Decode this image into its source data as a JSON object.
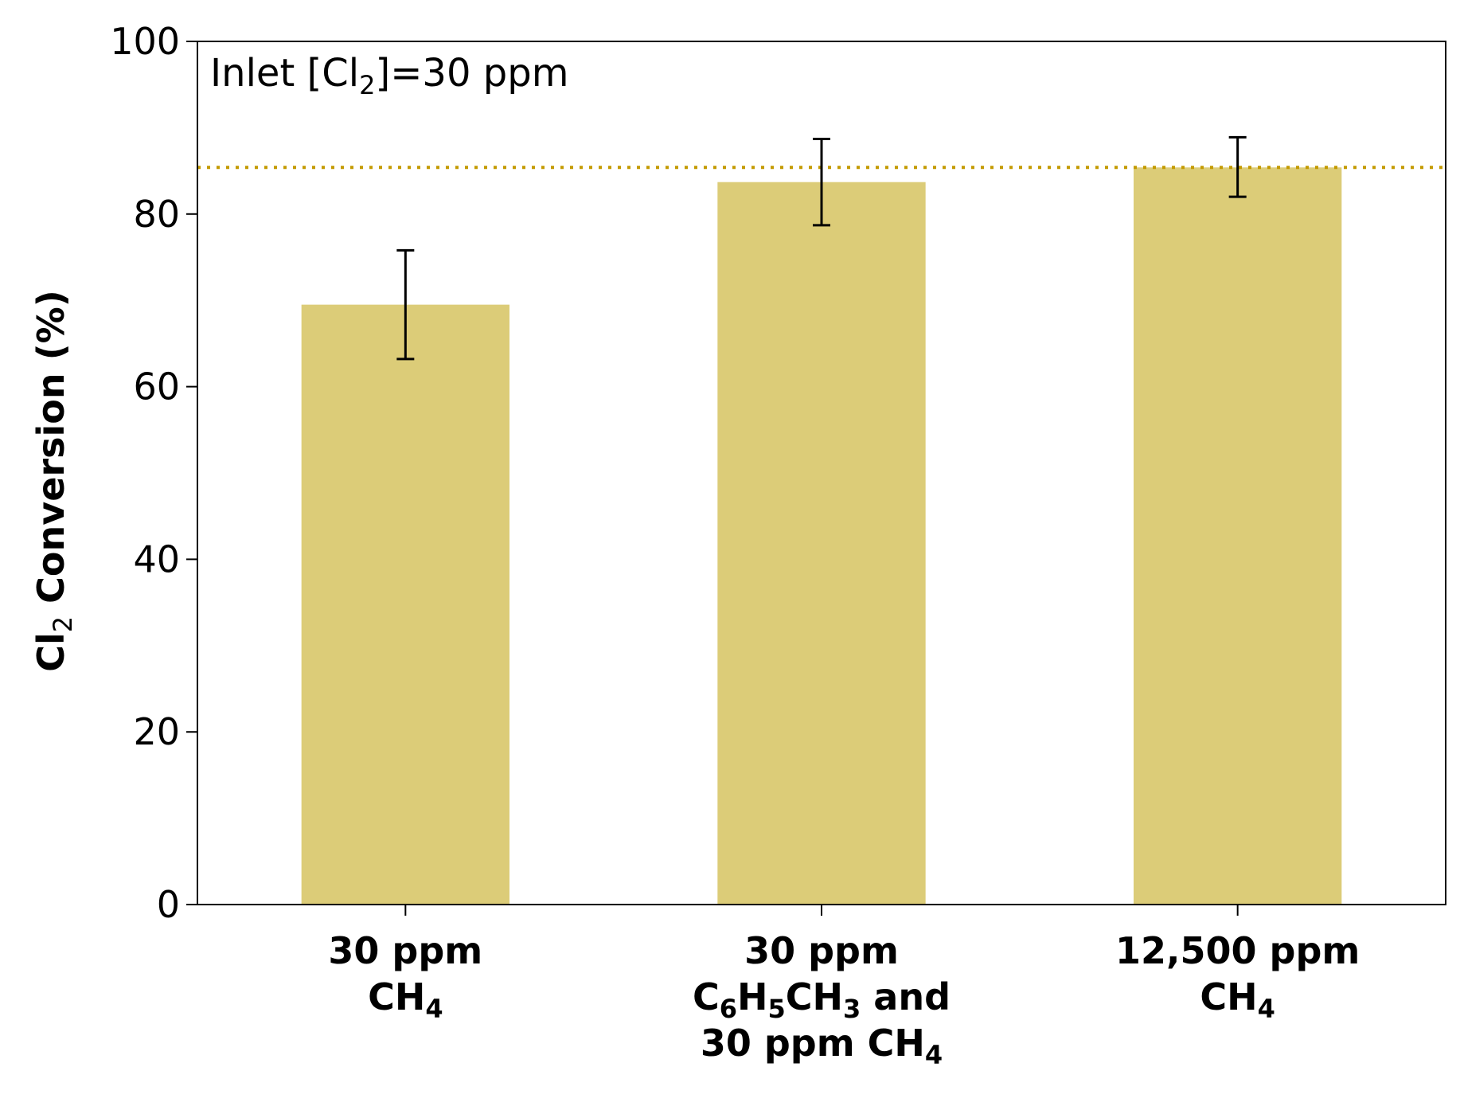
{
  "chart_data": {
    "type": "bar",
    "categories": [
      {
        "lines": [
          [
            {
              "t": "30 ppm"
            }
          ],
          [
            {
              "t": "CH"
            },
            {
              "t": "4",
              "sub": true
            }
          ]
        ]
      },
      {
        "lines": [
          [
            {
              "t": "30 ppm"
            }
          ],
          [
            {
              "t": "C"
            },
            {
              "t": "6",
              "sub": true
            },
            {
              "t": "H"
            },
            {
              "t": "5",
              "sub": true
            },
            {
              "t": "CH"
            },
            {
              "t": "3",
              "sub": true
            },
            {
              "t": " and"
            }
          ],
          [
            {
              "t": "30 ppm CH"
            },
            {
              "t": "4",
              "sub": true
            }
          ]
        ]
      },
      {
        "lines": [
          [
            {
              "t": "12,500 ppm"
            }
          ],
          [
            {
              "t": "CH"
            },
            {
              "t": "4",
              "sub": true
            }
          ]
        ]
      }
    ],
    "values": [
      69.5,
      83.7,
      85.4
    ],
    "error_low": [
      63.2,
      78.7,
      82.0
    ],
    "error_high": [
      75.8,
      88.7,
      88.9
    ],
    "reference_line": 85.4,
    "ylim": [
      0,
      100
    ],
    "yticks": [
      0,
      20,
      40,
      60,
      80,
      100
    ],
    "ylabel": [
      {
        "t": "Cl"
      },
      {
        "t": "2",
        "sub": true
      },
      {
        "t": " Conversion (%)"
      }
    ],
    "annotation": [
      {
        "t": "Inlet [Cl"
      },
      {
        "t": "2",
        "sub": true
      },
      {
        "t": "]=30 ppm"
      }
    ],
    "grid": false,
    "legend": "none",
    "colors": {
      "bar": "#dccc78",
      "reference_line": "#c49a00",
      "error_bar": "#000000",
      "axes": "#000000"
    }
  }
}
